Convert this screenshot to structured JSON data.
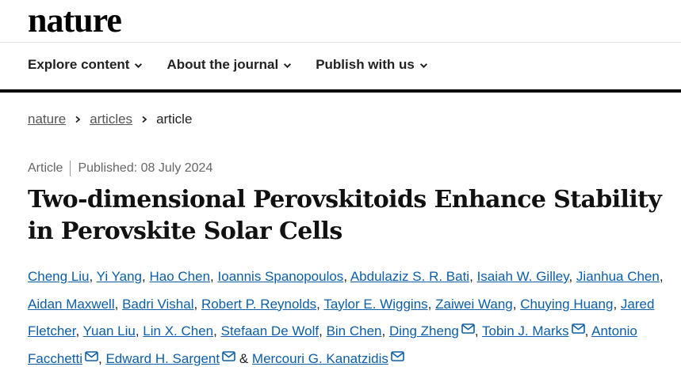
{
  "header": {
    "logo": "nature",
    "nav": [
      "Explore content",
      "About the journal",
      "Publish with us"
    ]
  },
  "breadcrumbs": [
    "nature",
    "articles",
    "article"
  ],
  "article": {
    "type": "Article",
    "published": "Published: 08 July 2024",
    "title": "Two-dimensional Perovskitoids Enhance Stability in Perovskite Solar Cells",
    "authors_separator": ",",
    "authors_final_separator": "&",
    "authors": [
      {
        "name": "Cheng Liu",
        "corresponding": false
      },
      {
        "name": "Yi Yang",
        "corresponding": false
      },
      {
        "name": "Hao Chen",
        "corresponding": false
      },
      {
        "name": "Ioannis Spanopoulos",
        "corresponding": false
      },
      {
        "name": "Abdulaziz S. R. Bati",
        "corresponding": false
      },
      {
        "name": "Isaiah W. Gilley",
        "corresponding": false
      },
      {
        "name": "Jianhua Chen",
        "corresponding": false
      },
      {
        "name": "Aidan Maxwell",
        "corresponding": false
      },
      {
        "name": "Badri Vishal",
        "corresponding": false
      },
      {
        "name": "Robert P. Reynolds",
        "corresponding": false
      },
      {
        "name": "Taylor E. Wiggins",
        "corresponding": false
      },
      {
        "name": "Zaiwei Wang",
        "corresponding": false
      },
      {
        "name": "Chuying Huang",
        "corresponding": false
      },
      {
        "name": "Jared Fletcher",
        "corresponding": false
      },
      {
        "name": "Yuan Liu",
        "corresponding": false
      },
      {
        "name": "Lin X. Chen",
        "corresponding": false
      },
      {
        "name": "Stefaan De Wolf",
        "corresponding": false
      },
      {
        "name": "Bin Chen",
        "corresponding": false
      },
      {
        "name": "Ding Zheng",
        "corresponding": true
      },
      {
        "name": "Tobin J. Marks",
        "corresponding": true
      },
      {
        "name": "Antonio Facchetti",
        "corresponding": true
      },
      {
        "name": "Edward H. Sargent",
        "corresponding": true
      },
      {
        "name": "Mercouri G. Kanatzidis",
        "corresponding": true
      }
    ]
  }
}
